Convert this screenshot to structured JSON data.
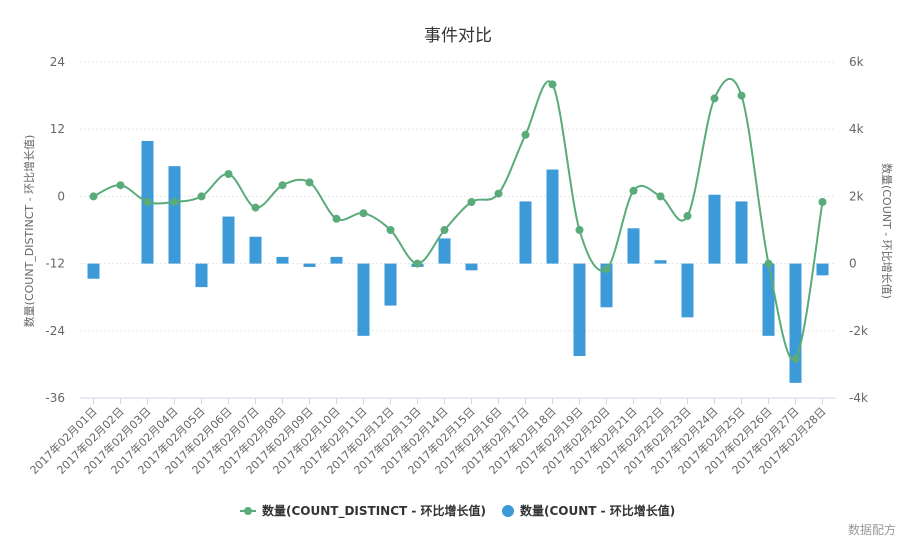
{
  "chart_data": {
    "type": "bar",
    "title": "事件对比",
    "categories": [
      "2017年02月01日",
      "2017年02月02日",
      "2017年02月03日",
      "2017年02月04日",
      "2017年02月05日",
      "2017年02月06日",
      "2017年02月07日",
      "2017年02月08日",
      "2017年02月09日",
      "2017年02月10日",
      "2017年02月11日",
      "2017年02月12日",
      "2017年02月13日",
      "2017年02月14日",
      "2017年02月15日",
      "2017年02月16日",
      "2017年02月17日",
      "2017年02月18日",
      "2017年02月19日",
      "2017年02月20日",
      "2017年02月21日",
      "2017年02月22日",
      "2017年02月23日",
      "2017年02月24日",
      "2017年02月25日",
      "2017年02月26日",
      "2017年02月27日",
      "2017年02月28日"
    ],
    "series": [
      {
        "name": "数量(COUNT_DISTINCT - 环比增长值)",
        "type": "line",
        "axis": "left",
        "color": "#5aab7a",
        "values": [
          0,
          2,
          -1,
          -1,
          0,
          4,
          -2,
          2,
          2.5,
          -4,
          -3,
          -6,
          -12,
          -6,
          -1,
          0.5,
          11,
          20,
          -6,
          -13,
          1,
          0,
          -3.5,
          17.5,
          18,
          -12,
          -29,
          -1
        ]
      },
      {
        "name": "数量(COUNT - 环比增长值)",
        "type": "bar",
        "axis": "right",
        "color": "#3d9ad8",
        "values": [
          -450,
          0,
          3650,
          2900,
          -700,
          1400,
          800,
          200,
          -100,
          200,
          -2150,
          -1250,
          -100,
          750,
          -200,
          0,
          1850,
          2800,
          -2750,
          -1300,
          1050,
          100,
          -1600,
          2050,
          1850,
          -2150,
          -3550,
          -350
        ]
      }
    ],
    "yaxis_left": {
      "label": "数量(COUNT_DISTINCT - 环比增长值)",
      "min": -36,
      "max": 24,
      "ticks": [
        "24",
        "12",
        "0",
        "-12",
        "-24",
        "-36"
      ]
    },
    "yaxis_right": {
      "label": "数量(COUNT - 环比增长值)",
      "min": -4000,
      "max": 6000,
      "ticks": [
        "6k",
        "4k",
        "2k",
        "0",
        "-2k",
        "-4k"
      ]
    },
    "grid": true,
    "legend": "bottom-center"
  },
  "credit": "数据配方"
}
